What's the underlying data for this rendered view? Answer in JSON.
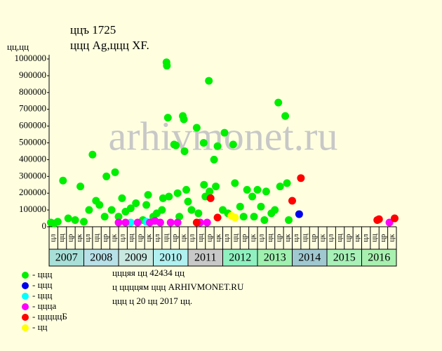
{
  "chart_data": {
    "type": "scatter",
    "title": "ццъ 1725",
    "subtitle": "ццц Ag,ццц XF.",
    "y_label": "цц,цц",
    "watermark": "arhivmonet.ru",
    "xlim": [
      2007,
      2017
    ],
    "ylim": [
      0,
      1000000
    ],
    "yticks": [
      0,
      100000,
      200000,
      300000,
      400000,
      500000,
      600000,
      700000,
      800000,
      900000,
      1000000
    ],
    "years": [
      "2007",
      "2008",
      "2009",
      "2010",
      "2011",
      "2012",
      "2013",
      "2014",
      "2015",
      "2016"
    ],
    "year_colors": [
      "#a8e0d8",
      "#b8e0e8",
      "#c8e8e0",
      "#b0f0f0",
      "#c8c8c8",
      "#90f0c0",
      "#a0f0b0",
      "#a0c8d0",
      "#a8f0b8",
      "#a8f0b0"
    ],
    "quarter_labels": [
      "цл",
      "цц",
      "цр",
      "цк"
    ],
    "series": [
      {
        "name": "- ццц",
        "color": "#00ee00",
        "x": [
          2007.05,
          2007.15,
          2007.25,
          2007.4,
          2007.55,
          2007.75,
          2007.9,
          2008.0,
          2008.15,
          2008.25,
          2008.35,
          2008.45,
          2008.6,
          2008.65,
          2008.8,
          2008.9,
          2009.0,
          2009.1,
          2009.2,
          2009.35,
          2009.5,
          2009.7,
          2009.8,
          2009.85,
          2010.0,
          2010.1,
          2010.25,
          2010.28,
          2010.38,
          2010.39,
          2010.42,
          2010.45,
          2010.6,
          2010.65,
          2010.7,
          2010.75,
          2010.85,
          2010.88,
          2010.9,
          2010.95,
          2011.0,
          2011.1,
          2011.25,
          2011.3,
          2011.45,
          2011.46,
          2011.5,
          2011.6,
          2011.62,
          2011.75,
          2011.8,
          2011.85,
          2012.0,
          2012.05,
          2012.15,
          2012.3,
          2012.35,
          2012.5,
          2012.6,
          2012.7,
          2012.85,
          2012.9,
          2013.0,
          2013.1,
          2013.2,
          2013.25,
          2013.4,
          2013.5,
          2013.6,
          2013.65,
          2013.8,
          2013.85,
          2013.9
        ],
        "values": [
          25000,
          20000,
          30000,
          275000,
          50000,
          40000,
          240000,
          30000,
          100000,
          430000,
          155000,
          130000,
          60000,
          300000,
          100000,
          325000,
          60000,
          170000,
          90000,
          110000,
          140000,
          40000,
          130000,
          190000,
          60000,
          80000,
          100000,
          170000,
          980000,
          960000,
          650000,
          180000,
          490000,
          485000,
          200000,
          60000,
          660000,
          640000,
          450000,
          220000,
          150000,
          100000,
          590000,
          80000,
          500000,
          250000,
          180000,
          870000,
          210000,
          400000,
          240000,
          480000,
          100000,
          560000,
          80000,
          490000,
          260000,
          120000,
          60000,
          220000,
          180000,
          60000,
          220000,
          120000,
          40000,
          210000,
          80000,
          100000,
          740000,
          240000,
          660000,
          260000,
          40000
        ]
      },
      {
        "name": "- ццц",
        "color": "#0000ee",
        "x": [
          2014.2
        ],
        "values": [
          75000
        ]
      },
      {
        "name": "- ццц",
        "color": "#00ffff",
        "x": [
          2009.35,
          2009.8
        ],
        "values": [
          25000,
          30000
        ]
      },
      {
        "name": "- ццца",
        "color": "#ff00ff",
        "x": [
          2009.0,
          2009.2,
          2009.55,
          2009.9,
          2010.05,
          2010.2,
          2010.5,
          2010.7,
          2011.35,
          2011.55,
          2016.8
        ],
        "values": [
          25000,
          25000,
          25000,
          25000,
          35000,
          25000,
          25000,
          25000,
          25000,
          25000,
          25000
        ]
      },
      {
        "name": "- цццццБ",
        "color": "#ff0000",
        "x": [
          2011.25,
          2011.65,
          2011.85,
          2014.0,
          2014.25,
          2016.45,
          2016.5,
          2016.95
        ],
        "values": [
          25000,
          170000,
          55000,
          155000,
          290000,
          40000,
          45000,
          50000
        ]
      },
      {
        "name": "- цц",
        "color": "#ffff00",
        "x": [
          2012.25,
          2012.35
        ],
        "values": [
          65000,
          55000
        ]
      }
    ],
    "notes": [
      "цццяя цц 42434 цц",
      "ц ццццям ццц ARHIVMONET.RU",
      "ццц ц 20 цц 2017 цц."
    ]
  }
}
